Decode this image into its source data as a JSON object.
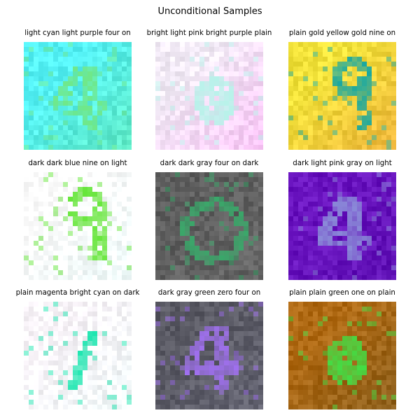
{
  "title": "Unconditional Samples",
  "samples": [
    {
      "label": "light cyan light purple four on",
      "base": "#55f2f6",
      "accent": "#6fe88a",
      "shape": "four",
      "bg2": "#66e6aa"
    },
    {
      "label": "bright light pink bright purple plain",
      "base": "#f4ecf8",
      "accent": "#b8f2ea",
      "shape": "blob",
      "bg2": "#ffb0f8"
    },
    {
      "label": "plain gold yellow gold nine on",
      "base": "#f2e23a",
      "accent": "#1aa8a0",
      "shape": "nine",
      "bg2": "#f0a040"
    },
    {
      "label": "dark dark blue nine on light",
      "base": "#ffffff",
      "accent": "#66e63a",
      "shape": "nine",
      "bg2": "#e8fbfa"
    },
    {
      "label": "dark dark gray four on dark",
      "base": "#5e5e5e",
      "accent": "#3aa86a",
      "shape": "ring",
      "bg2": "#6a6a6a"
    },
    {
      "label": "dark light pink gray on light",
      "base": "#6a14c0",
      "accent": "#8a8ad8",
      "shape": "four",
      "bg2": "#5a10b0"
    },
    {
      "label": "plain magenta bright cyan on dark",
      "base": "#fbf6fb",
      "accent": "#1ee6b0",
      "shape": "one",
      "bg2": "#eafaf8"
    },
    {
      "label": "dark gray green zero four on",
      "base": "#5a5a64",
      "accent": "#a070f0",
      "shape": "four",
      "bg2": "#6a6a7a"
    },
    {
      "label": "plain plain green one on plain",
      "base": "#b06a14",
      "accent": "#44dd44",
      "shape": "blob",
      "bg2": "#7a5a20"
    }
  ]
}
